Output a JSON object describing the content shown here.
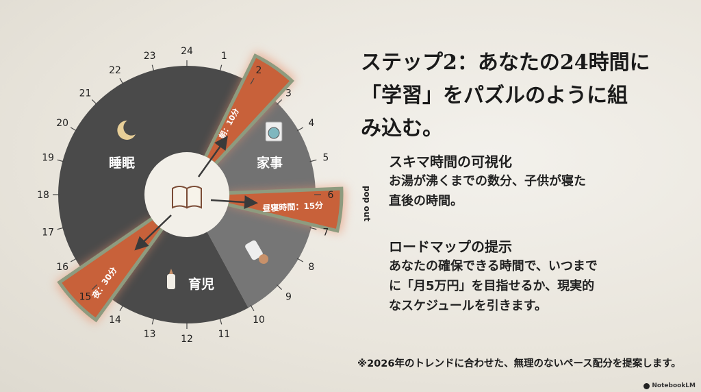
{
  "title": "ステップ2：あなたの24時間に「学習」をパズルのように組み込む。",
  "title_lines": [
    "ステップ2：あなたの24時間に",
    "「学習」をパズルのように組",
    "み込む。"
  ],
  "wheel": {
    "hours": [
      "1",
      "2",
      "3",
      "4",
      "5",
      "6",
      "7",
      "8",
      "9",
      "10",
      "11",
      "12",
      "13",
      "14",
      "15",
      "16",
      "17",
      "18",
      "19",
      "20",
      "21",
      "22",
      "23",
      "24"
    ],
    "segments": {
      "sleep": "睡眠",
      "housework": "家事",
      "childcare": "育児"
    },
    "study_slots": {
      "morning": "朝：10分",
      "nap": "昼寝時間：15分",
      "night": "夜：30分"
    },
    "popout_label": "pop out",
    "icons": [
      "moon-icon",
      "washing-machine-icon",
      "baby-bottle-icon",
      "pacifier-icon",
      "open-book-icon"
    ],
    "colors": {
      "dark": "#4a4a4a",
      "medium": "#727272",
      "study": "#c8613a",
      "study_border": "#8e9b7f",
      "center": "#f2efe8"
    }
  },
  "sections": [
    {
      "heading": "スキマ時間の可視化",
      "lines": [
        "お湯が沸くまでの数分、子供が寝た",
        "直後の時間。"
      ]
    },
    {
      "heading": "ロードマップの提示",
      "lines": [
        "あなたの確保できる時間で、いつまで",
        "に「月5万円」を目指せるか、現実的",
        "なスケジュールを引きます。"
      ]
    }
  ],
  "footer": "※2026年のトレンドに合わせた、無理のないペース配分を提案します。",
  "brand": "NotebookLM"
}
